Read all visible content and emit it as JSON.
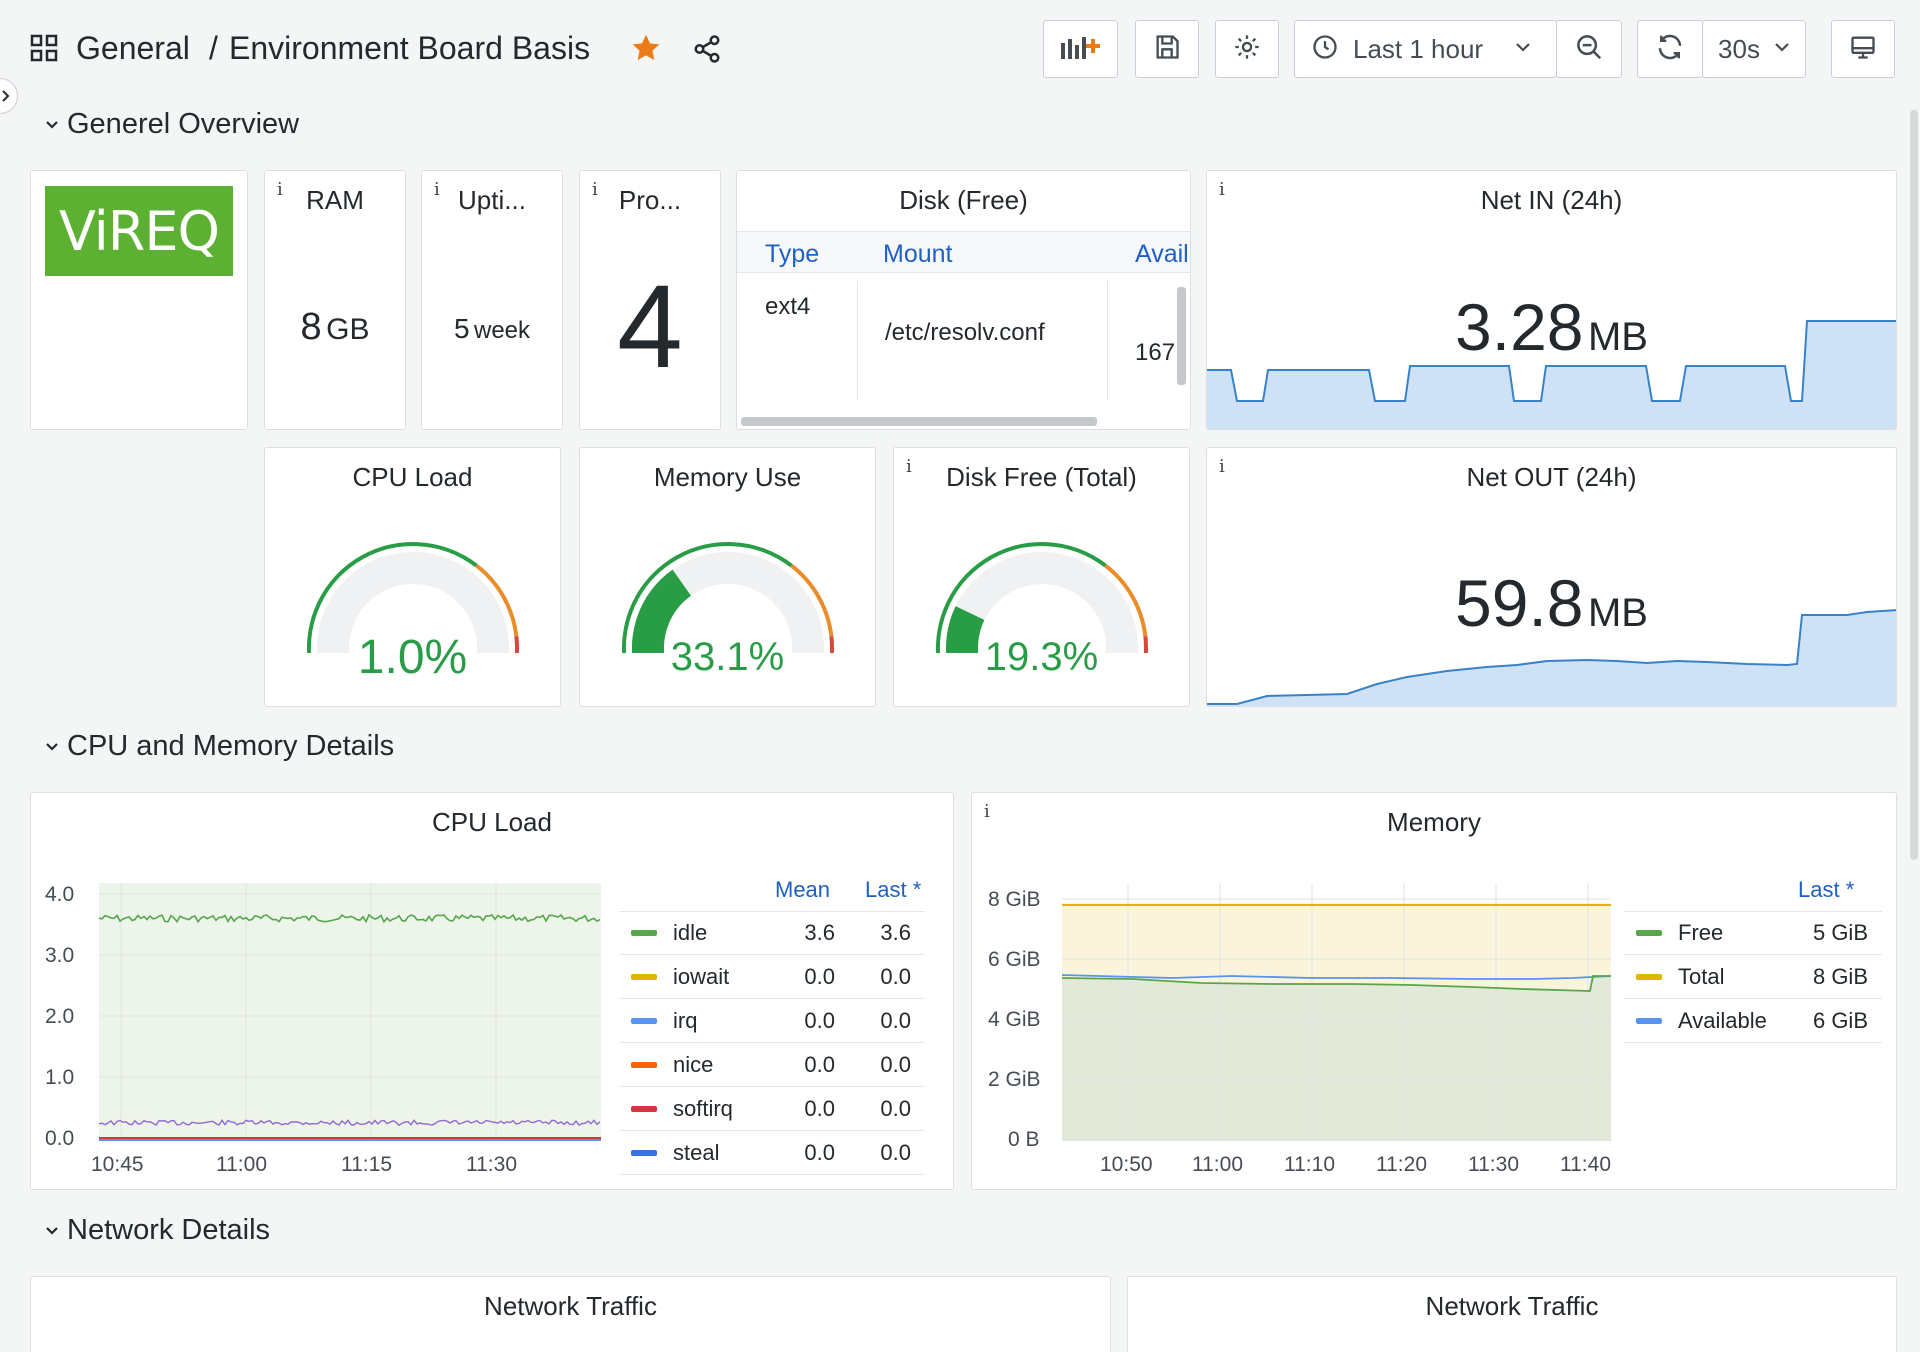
{
  "header": {
    "breadcrumb_folder": "General",
    "breadcrumb_sep": "/",
    "dashboard_title": "Environment Board Basis",
    "time_range": "Last 1 hour",
    "refresh_interval": "30s",
    "star_color": "#eb7b18"
  },
  "rows": {
    "general": "Generel Overview",
    "cpu_mem": "CPU and Memory Details",
    "network": "Network Details"
  },
  "logo": {
    "text": "ViREQ",
    "color": "#5cb132"
  },
  "stats": {
    "ram": {
      "title": "RAM",
      "value": "8",
      "unit": "GB"
    },
    "uptime": {
      "title": "Upti...",
      "value": "5",
      "unit": "week"
    },
    "procs": {
      "title": "Pro...",
      "value": "4"
    }
  },
  "disk_table": {
    "title": "Disk (Free)",
    "columns": [
      "Type",
      "Mount",
      "Avail"
    ],
    "row": {
      "type": "ext4",
      "mount": "/etc/resolv.conf",
      "avail": "167"
    }
  },
  "net_in": {
    "title": "Net IN (24h)",
    "value": "3.28",
    "unit": "MB"
  },
  "net_out": {
    "title": "Net OUT (24h)",
    "value": "59.8",
    "unit": "MB"
  },
  "gauges": {
    "cpu": {
      "title": "CPU Load",
      "value": "1.0%",
      "fraction": 0.01
    },
    "mem": {
      "title": "Memory Use",
      "value": "33.1%",
      "fraction": 0.331
    },
    "disk": {
      "title": "Disk Free (Total)",
      "value": "19.3%",
      "fraction": 0.193
    }
  },
  "cpu_panel": {
    "title": "CPU Load",
    "legend_headers": {
      "mean": "Mean",
      "last": "Last *"
    },
    "legend": [
      {
        "name": "idle",
        "mean": "3.6",
        "last": "3.6",
        "color": "#56a64b"
      },
      {
        "name": "iowait",
        "mean": "0.0",
        "last": "0.0",
        "color": "#e0b400"
      },
      {
        "name": "irq",
        "mean": "0.0",
        "last": "0.0",
        "color": "#5794f2"
      },
      {
        "name": "nice",
        "mean": "0.0",
        "last": "0.0",
        "color": "#fa6400"
      },
      {
        "name": "softirq",
        "mean": "0.0",
        "last": "0.0",
        "color": "#e02f44"
      },
      {
        "name": "steal",
        "mean": "0.0",
        "last": "0.0",
        "color": "#3274d9"
      }
    ]
  },
  "memory_panel": {
    "title": "Memory",
    "legend_headers": {
      "last": "Last *"
    },
    "legend": [
      {
        "name": "Free",
        "last": "5 GiB",
        "color": "#56a64b"
      },
      {
        "name": "Total",
        "last": "8 GiB",
        "color": "#e0b400"
      },
      {
        "name": "Available",
        "last": "6 GiB",
        "color": "#5794f2"
      }
    ]
  },
  "network_panels": {
    "left_title": "Network Traffic",
    "right_title": "Network Traffic"
  },
  "chart_data": [
    {
      "type": "line",
      "title": "CPU Load",
      "x": [
        "10:45",
        "11:00",
        "11:15",
        "11:30"
      ],
      "yticks": [
        "0.0",
        "1.0",
        "2.0",
        "3.0",
        "4.0"
      ],
      "ylim": [
        0,
        4
      ],
      "series": [
        {
          "name": "idle",
          "value": 3.6
        },
        {
          "name": "iowait",
          "value": 0.0
        },
        {
          "name": "irq",
          "value": 0.0
        },
        {
          "name": "nice",
          "value": 0.0
        },
        {
          "name": "softirq",
          "value": 0.0
        },
        {
          "name": "steal",
          "value": 0.0
        }
      ]
    },
    {
      "type": "area",
      "title": "Memory",
      "x": [
        "10:50",
        "11:00",
        "11:10",
        "11:20",
        "11:30",
        "11:40"
      ],
      "yticks": [
        "0 B",
        "2 GiB",
        "4 GiB",
        "6 GiB",
        "8 GiB"
      ],
      "ylim": [
        0,
        8.5
      ],
      "series": [
        {
          "name": "Total",
          "value_gib": 7.8
        },
        {
          "name": "Available",
          "value_gib": 5.6
        },
        {
          "name": "Free",
          "start_gib": 5.5,
          "end_gib": 5.0
        }
      ]
    }
  ]
}
